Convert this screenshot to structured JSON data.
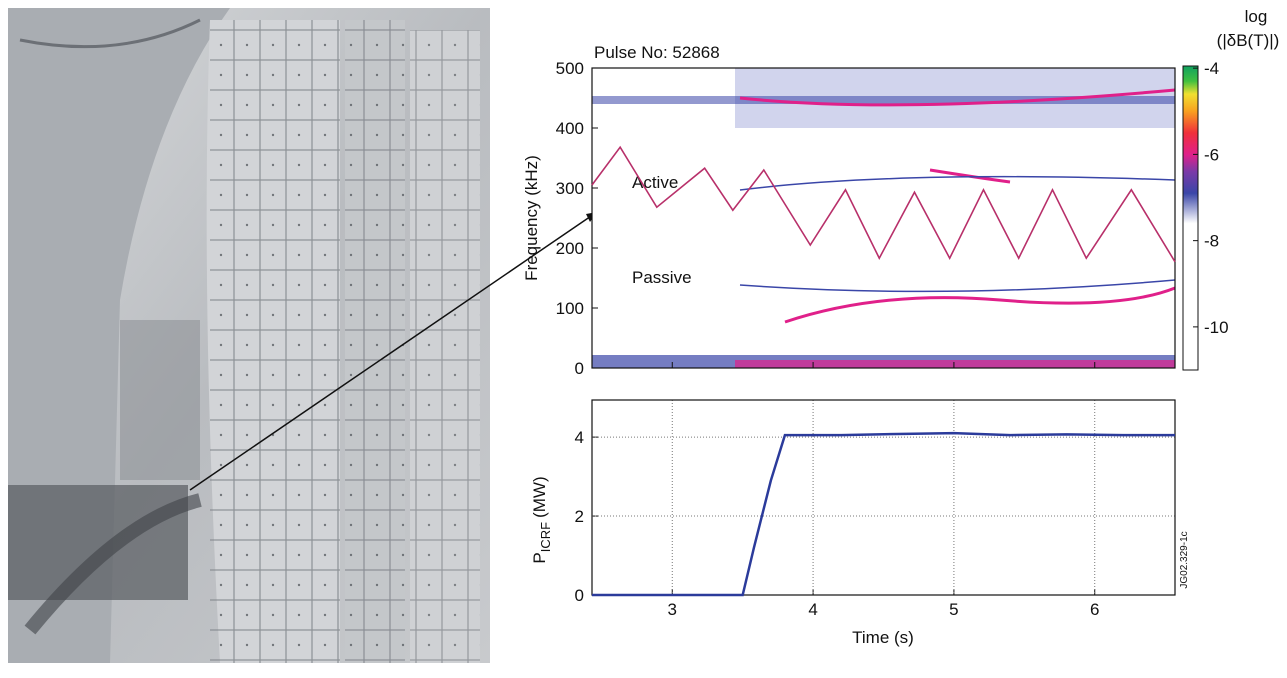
{
  "chart_data": [
    {
      "type": "spectrogram",
      "title": "Pulse No: 52868",
      "ylabel": "Frequency (kHz)",
      "annotations": [
        "Active",
        "Passive"
      ],
      "xlim": [
        2.43,
        6.57
      ],
      "xticks": [
        3,
        4,
        5,
        6
      ],
      "ylim": [
        0,
        500
      ],
      "yticks": [
        0,
        100,
        200,
        300,
        400,
        500
      ],
      "series": [
        {
          "color": "#b8306a",
          "x": [
            2.43,
            2.63,
            2.89,
            3.23,
            3.43,
            3.65,
            3.98,
            4.23,
            4.47,
            4.72,
            4.97,
            5.21,
            5.46,
            5.7,
            5.94,
            6.26,
            6.57
          ],
          "values": [
            305,
            368,
            268,
            333,
            263,
            330,
            205,
            297,
            183,
            293,
            183,
            297,
            183,
            297,
            183,
            297,
            177
          ]
        }
      ],
      "colorbar": {
        "label": [
          "log",
          "(|δB(T)|)"
        ],
        "lim": [
          -11,
          -3.95
        ],
        "ticks": [
          -4,
          -6,
          -8,
          -10
        ],
        "colormap": [
          {
            "value": -11,
            "color": "#ffffff"
          },
          {
            "value": -7.6,
            "color": "#ffffff"
          },
          {
            "value": -6.9,
            "color": "#3a46a8"
          },
          {
            "value": -6.4,
            "color": "#7a3aa8"
          },
          {
            "value": -6,
            "color": "#e0208a"
          },
          {
            "value": -5.5,
            "color": "#f0303a"
          },
          {
            "value": -5,
            "color": "#f8a020"
          },
          {
            "value": -4.6,
            "color": "#f0e030"
          },
          {
            "value": -4.3,
            "color": "#40c040"
          },
          {
            "value": -3.95,
            "color": "#10a060"
          }
        ]
      }
    },
    {
      "type": "line",
      "ylabel": {
        "main": "P",
        "sub": "ICRF",
        "unit": "(MW)"
      },
      "xlabel": "Time (s)",
      "note": "JG02.329-1c",
      "xlim": [
        2.43,
        6.57
      ],
      "xticks": [
        3,
        4,
        5,
        6
      ],
      "ylim": [
        0,
        4.94
      ],
      "yticks": [
        0,
        2,
        4
      ],
      "grid": true,
      "x": [
        2.43,
        3.5,
        3.58,
        3.7,
        3.8,
        4.2,
        4.6,
        5.0,
        5.4,
        5.8,
        6.2,
        6.57
      ],
      "series": [
        {
          "color": "#2b3b9b",
          "values": [
            0,
            0,
            1.2,
            2.9,
            4.05,
            4.05,
            4.08,
            4.1,
            4.05,
            4.07,
            4.05,
            4.05
          ]
        }
      ]
    }
  ]
}
